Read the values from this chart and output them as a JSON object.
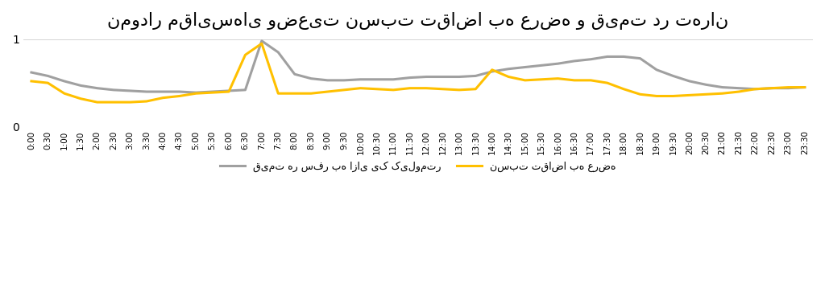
{
  "title": "نمودار مقایسهای وضعیت نسبت تقاضا به عرضه و قیمت در تهران",
  "legend_demand": "نسبت تقاضا به عرضه",
  "legend_price": "قیمت هر سفر به ازای یک کیلومتر",
  "x_labels": [
    "0:00",
    "0:30",
    "1:00",
    "1:30",
    "2:00",
    "2:30",
    "3:00",
    "3:30",
    "4:00",
    "4:30",
    "5:00",
    "5:30",
    "6:00",
    "6:30",
    "7:00",
    "7:30",
    "8:00",
    "8:30",
    "9:00",
    "9:30",
    "10:00",
    "10:30",
    "11:00",
    "11:30",
    "12:00",
    "12:30",
    "13:00",
    "13:30",
    "14:00",
    "14:30",
    "15:00",
    "15:30",
    "16:00",
    "16:30",
    "17:00",
    "17:30",
    "18:00",
    "18:30",
    "19:00",
    "19:30",
    "20:00",
    "20:30",
    "21:00",
    "21:30",
    "22:00",
    "22:30",
    "23:00",
    "23:30"
  ],
  "demand_color": "#FFC000",
  "price_color": "#A0A0A0",
  "demand_values": [
    0.52,
    0.5,
    0.38,
    0.32,
    0.28,
    0.28,
    0.28,
    0.29,
    0.33,
    0.35,
    0.38,
    0.39,
    0.4,
    0.82,
    0.95,
    0.38,
    0.38,
    0.38,
    0.4,
    0.42,
    0.44,
    0.43,
    0.42,
    0.44,
    0.44,
    0.43,
    0.42,
    0.43,
    0.65,
    0.57,
    0.53,
    0.54,
    0.55,
    0.53,
    0.53,
    0.5,
    0.43,
    0.37,
    0.35,
    0.35,
    0.36,
    0.37,
    0.38,
    0.4,
    0.43,
    0.44,
    0.45,
    0.45
  ],
  "price_values": [
    0.62,
    0.58,
    0.52,
    0.47,
    0.44,
    0.42,
    0.41,
    0.4,
    0.4,
    0.4,
    0.39,
    0.4,
    0.41,
    0.42,
    0.98,
    0.85,
    0.6,
    0.55,
    0.53,
    0.53,
    0.54,
    0.54,
    0.54,
    0.56,
    0.57,
    0.57,
    0.57,
    0.58,
    0.63,
    0.66,
    0.68,
    0.7,
    0.72,
    0.75,
    0.77,
    0.8,
    0.8,
    0.78,
    0.65,
    0.58,
    0.52,
    0.48,
    0.45,
    0.44,
    0.43,
    0.44,
    0.44,
    0.45
  ],
  "ylim": [
    0,
    1
  ],
  "background_color": "#FFFFFF",
  "title_fontsize": 16,
  "tick_fontsize": 7.5
}
